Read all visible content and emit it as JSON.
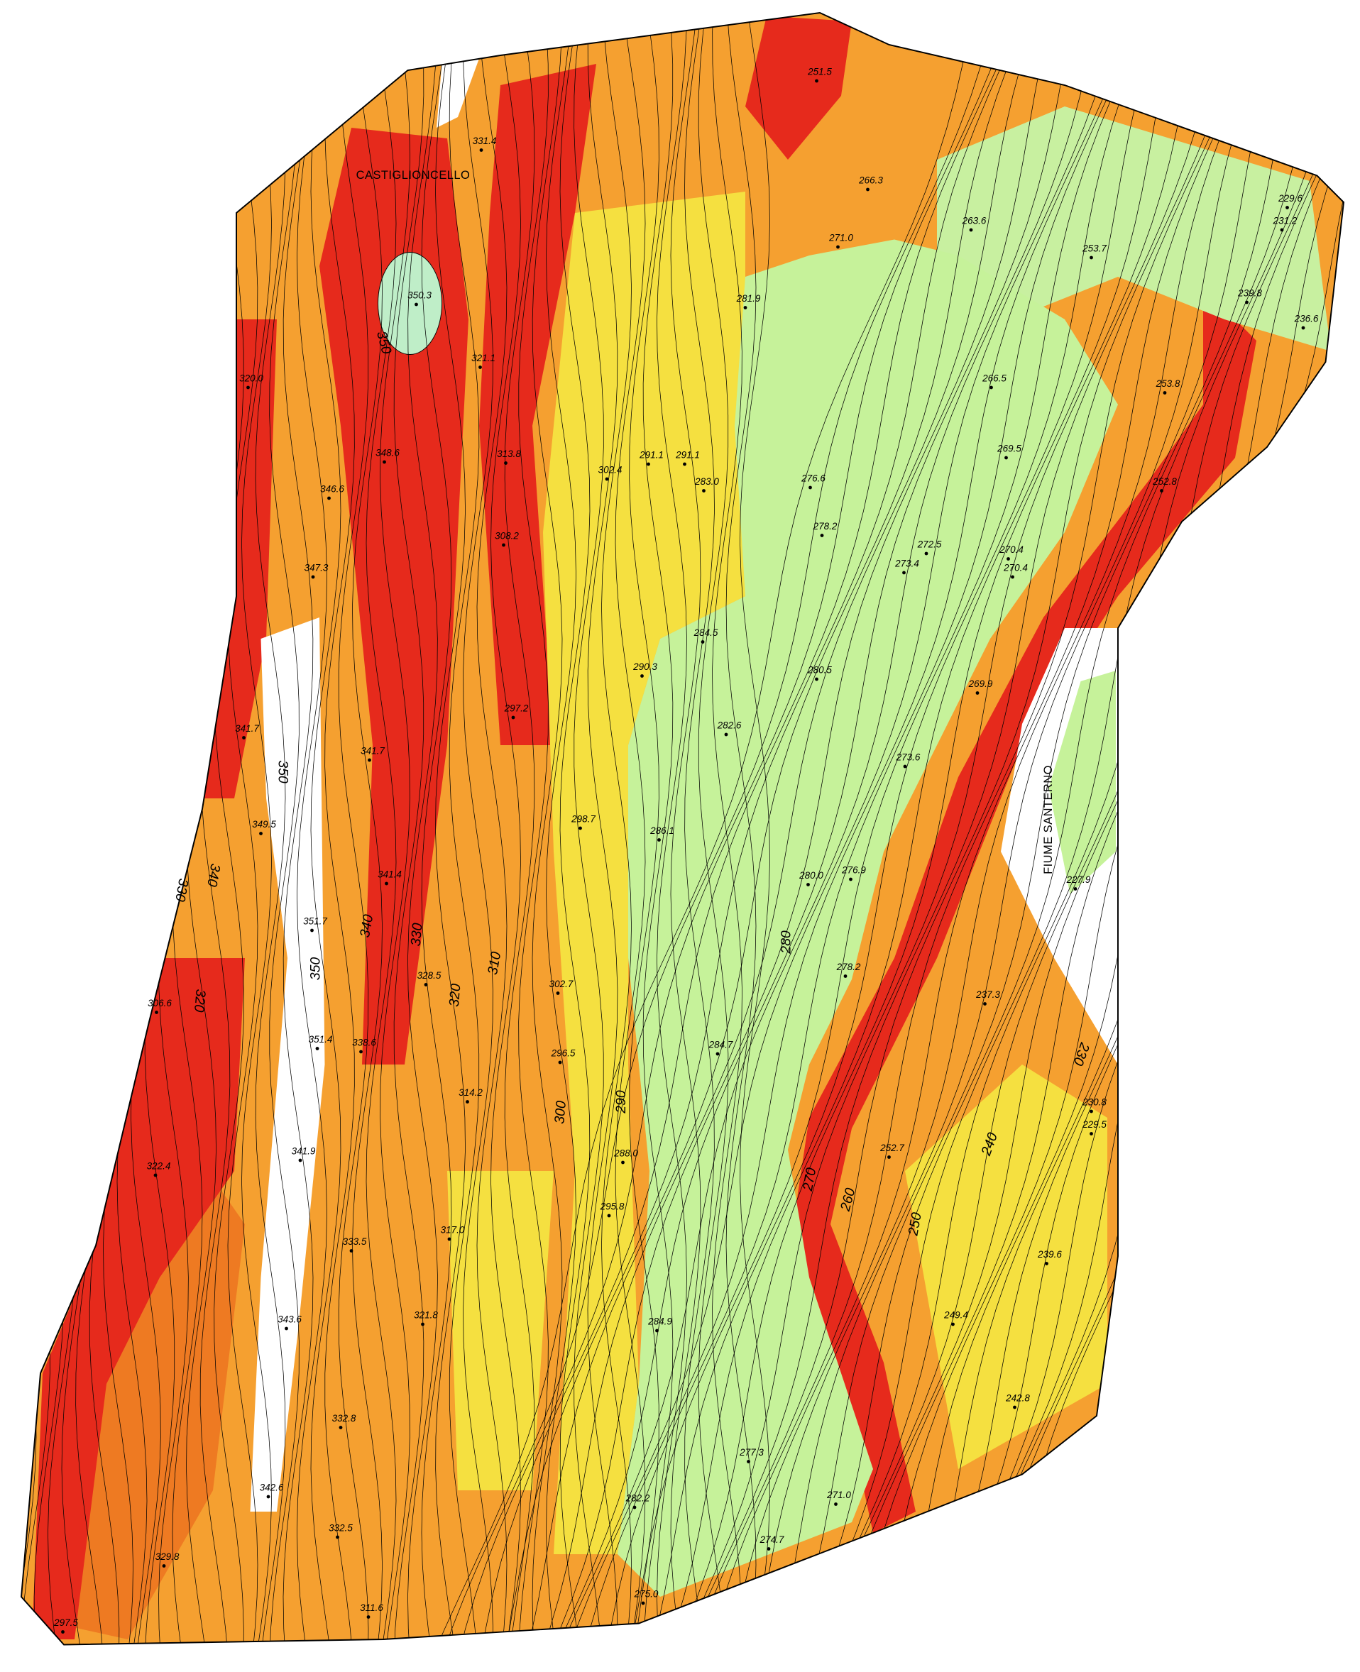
{
  "labels": {
    "places": [
      "CASTIGLIONCELLO",
      "FIUME SANTERNO"
    ],
    "spot_heights": [
      "331.4",
      "251.5",
      "266.3",
      "229.6",
      "263.6",
      "231.2",
      "271.0",
      "253.7",
      "350.3",
      "281.9",
      "239.8",
      "236.6",
      "321.1",
      "320.0",
      "266.5",
      "253.8",
      "269.5",
      "348.6",
      "313.8",
      "291.1",
      "291.1",
      "302.4",
      "283.0",
      "276.6",
      "252.8",
      "346.6",
      "278.2",
      "308.2",
      "272.5",
      "270.4",
      "273.4",
      "270.4",
      "347.3",
      "284.5",
      "290.3",
      "280.5",
      "269.9",
      "297.2",
      "282.6",
      "341.7",
      "341.7",
      "273.6",
      "298.7",
      "349.5",
      "286.1",
      "280.0",
      "276.9",
      "227.9",
      "341.4",
      "351.7",
      "278.2",
      "328.5",
      "302.7",
      "237.3",
      "306.6",
      "351.4",
      "338.6",
      "284.7",
      "296.5",
      "314.2",
      "230.8",
      "229.5",
      "288.0",
      "252.7",
      "322.4",
      "341.9",
      "295.8",
      "317.0",
      "333.5",
      "239.6",
      "343.6",
      "321.8",
      "249.4",
      "284.9",
      "242.8",
      "332.8",
      "277.3",
      "271.0",
      "342.6",
      "282.2",
      "332.5",
      "274.7",
      "329.8",
      "275.0",
      "311.6",
      "297.5"
    ],
    "contours": [
      "350",
      "350",
      "340",
      "330",
      "350",
      "340",
      "330",
      "320",
      "310",
      "320",
      "300",
      "290",
      "280",
      "270",
      "260",
      "250",
      "240",
      "230"
    ]
  }
}
